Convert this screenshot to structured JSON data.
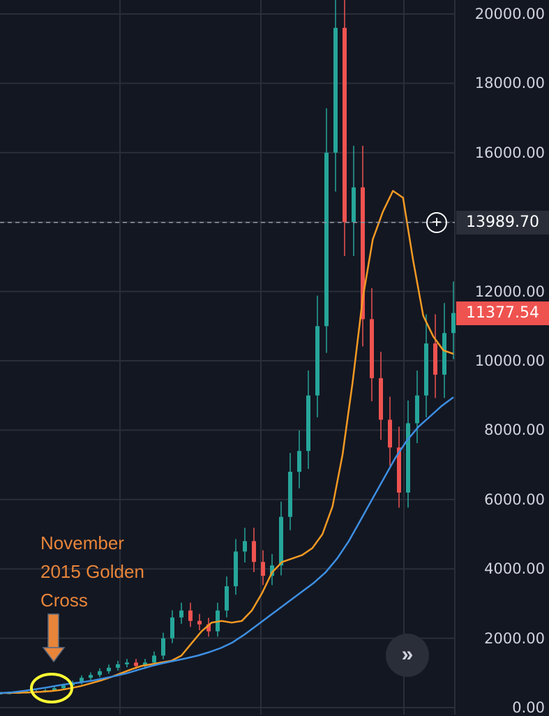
{
  "chart_data": {
    "type": "line",
    "title": "",
    "ylim": [
      0,
      20000
    ],
    "y_ticks": [
      "20000.00",
      "18000.00",
      "16000.00",
      "14000.00",
      "12000.00",
      "10000.00",
      "8000.00",
      "6000.00",
      "4000.00",
      "2000.00",
      "0.00"
    ],
    "grid": true,
    "series": [
      {
        "name": "",
        "style": "candles",
        "color_up": "#26a69a",
        "color_down": "#ef5350",
        "values": [
          420,
          430,
          440,
          450,
          470,
          500,
          560,
          640,
          720,
          860,
          940,
          1050,
          1150,
          1250,
          1300,
          1200,
          1300,
          1500,
          2000,
          2600,
          2800,
          2500,
          2400,
          2200,
          2800,
          3500,
          4500,
          4800,
          4200,
          3800,
          4100,
          5500,
          6800,
          7400,
          9000,
          11000,
          16000,
          19600,
          14000,
          15000,
          11200,
          9500,
          8300,
          7500,
          6200,
          8200,
          9000,
          10500,
          9600,
          10800,
          11377.54
        ]
      },
      {
        "name": "",
        "color": "#f59a23",
        "values": [
          420,
          425,
          430,
          440,
          455,
          475,
          510,
          560,
          620,
          700,
          780,
          880,
          990,
          1100,
          1200,
          1250,
          1300,
          1350,
          1500,
          1850,
          2200,
          2450,
          2500,
          2450,
          2500,
          2800,
          3300,
          3900,
          4200,
          4300,
          4400,
          4600,
          5000,
          5800,
          7300,
          9400,
          11800,
          13500,
          14300,
          14900,
          14700,
          12900,
          11300,
          10700,
          10300,
          10200
        ]
      },
      {
        "name": "",
        "color": "#3d8fe3",
        "values": [
          420,
          440,
          480,
          530,
          580,
          640,
          690,
          730,
          780,
          850,
          920,
          1000,
          1100,
          1200,
          1280,
          1350,
          1420,
          1500,
          1600,
          1720,
          1880,
          2100,
          2350,
          2600,
          2850,
          3100,
          3350,
          3600,
          3900,
          4300,
          4800,
          5400,
          6000,
          6600,
          7200,
          7700,
          8100,
          8400,
          8700,
          8950
        ]
      }
    ],
    "crosshair_value": 13989.7,
    "last_price": 11377.54,
    "last_price_color": "#ef5350"
  },
  "crosshair_label": "13989.70",
  "last_price_label": "11377.54",
  "annotation": {
    "text": "November\n2015 Golden\nCross",
    "color": "#e8853a",
    "arrow_color": "#e8853a",
    "highlight_color": "#ffff33"
  },
  "icons": {
    "add": "plus-circle-icon",
    "scroll": "double-chevron-right-icon"
  }
}
